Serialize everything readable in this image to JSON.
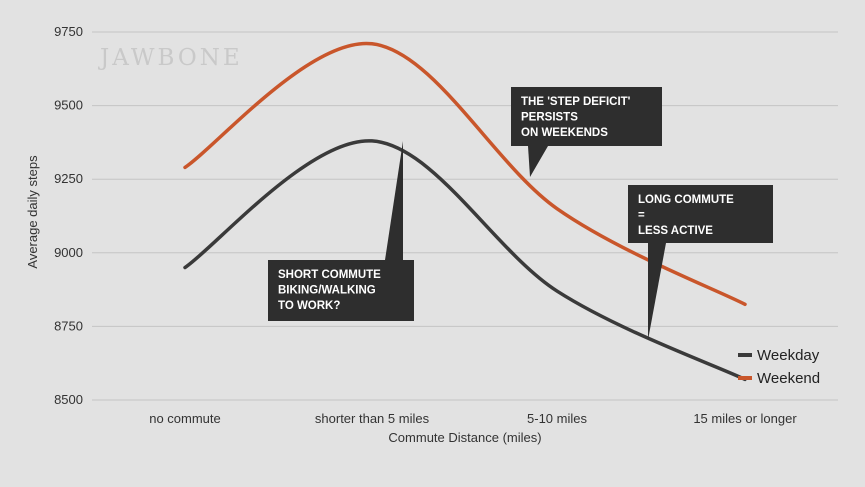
{
  "brand": "JAWBONE",
  "chart_data": {
    "type": "line",
    "categories": [
      "no commute",
      "shorter than 5 miles",
      "5-10 miles",
      "15 miles or longer"
    ],
    "xlabel": "Commute Distance (miles)",
    "ylabel": "Average daily steps",
    "ylim": [
      8500,
      9750
    ],
    "yticks": [
      "8500",
      "8750",
      "9000",
      "9250",
      "9500",
      "9750"
    ],
    "grid": true,
    "legend_position": "bottom-right",
    "series": [
      {
        "name": "Weekday",
        "color": "#3a3a3a",
        "values": [
          8950,
          9380,
          8870,
          8570
        ]
      },
      {
        "name": "Weekend",
        "color": "#c9562b",
        "values": [
          9290,
          9710,
          9150,
          8825
        ]
      }
    ],
    "annotations": [
      {
        "lines": [
          "SHORT COMMUTE",
          "BIKING/WALKING",
          "TO WORK?"
        ]
      },
      {
        "lines": [
          "THE 'STEP DEFICIT'",
          "PERSISTS",
          "ON WEEKENDS"
        ]
      },
      {
        "lines": [
          "LONG COMMUTE",
          "=",
          "LESS ACTIVE"
        ]
      }
    ]
  }
}
